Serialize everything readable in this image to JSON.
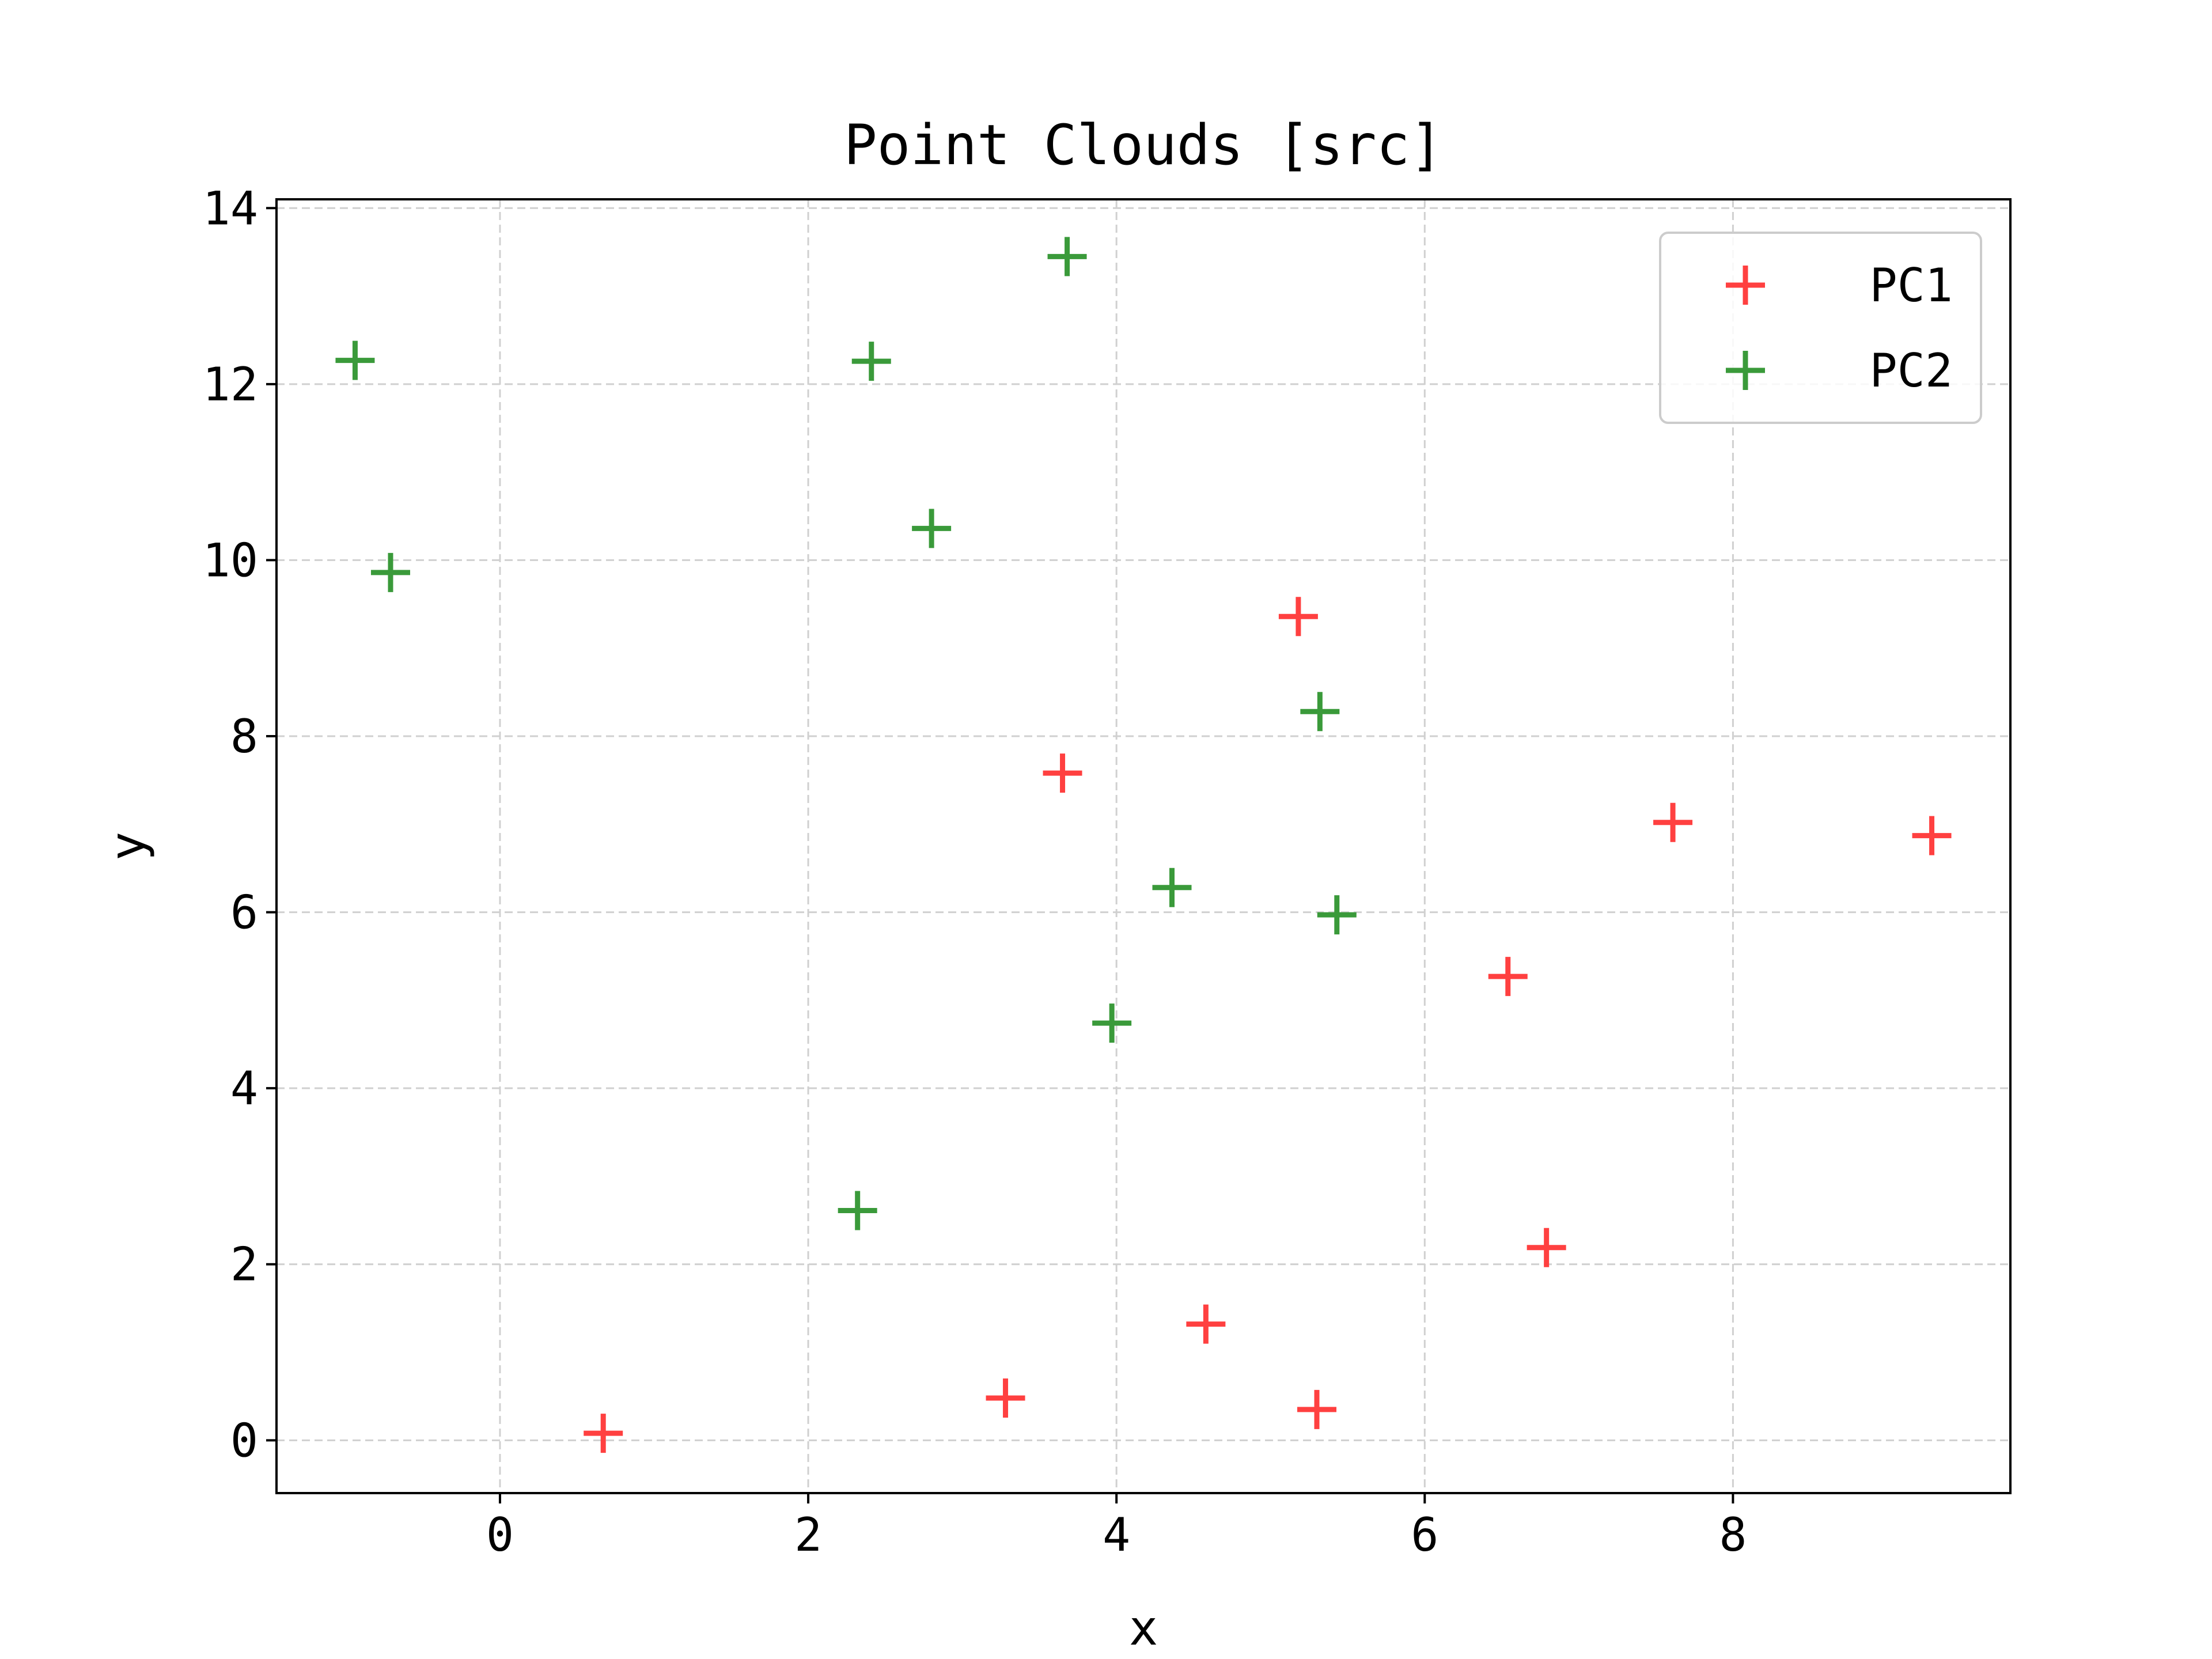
{
  "colors": {
    "pc1": "#ff4040",
    "pc2": "#3a9a3a",
    "grid": "#d0d0d0",
    "axis": "#000000",
    "legend_border": "#cccccc"
  },
  "chart_data": {
    "type": "scatter",
    "title": "Point Clouds [src]",
    "xlabel": "x",
    "ylabel": "y",
    "xlim": [
      -1.45,
      9.8
    ],
    "ylim": [
      -0.6,
      14.1
    ],
    "xticks": [
      0,
      2,
      4,
      6,
      8
    ],
    "yticks": [
      0,
      2,
      4,
      6,
      8,
      10,
      12,
      14
    ],
    "grid": true,
    "grid_style": "dashed",
    "marker": "+",
    "legend_position": "top-right",
    "series": [
      {
        "name": "PC1",
        "color": "#ff4040",
        "points": [
          {
            "x": 0.67,
            "y": 0.08
          },
          {
            "x": 3.28,
            "y": 0.48
          },
          {
            "x": 4.58,
            "y": 1.32
          },
          {
            "x": 5.3,
            "y": 0.35
          },
          {
            "x": 6.79,
            "y": 2.19
          },
          {
            "x": 6.54,
            "y": 5.27
          },
          {
            "x": 7.61,
            "y": 7.02
          },
          {
            "x": 9.29,
            "y": 6.87
          },
          {
            "x": 3.65,
            "y": 7.58
          },
          {
            "x": 5.18,
            "y": 9.36
          }
        ]
      },
      {
        "name": "PC2",
        "color": "#3a9a3a",
        "points": [
          {
            "x": -0.94,
            "y": 12.27
          },
          {
            "x": -0.71,
            "y": 9.86
          },
          {
            "x": 2.41,
            "y": 12.26
          },
          {
            "x": 3.68,
            "y": 13.45
          },
          {
            "x": 2.8,
            "y": 10.36
          },
          {
            "x": 5.32,
            "y": 8.28
          },
          {
            "x": 4.36,
            "y": 6.28
          },
          {
            "x": 5.43,
            "y": 5.97
          },
          {
            "x": 3.97,
            "y": 4.74
          },
          {
            "x": 2.32,
            "y": 2.61
          }
        ]
      }
    ]
  }
}
